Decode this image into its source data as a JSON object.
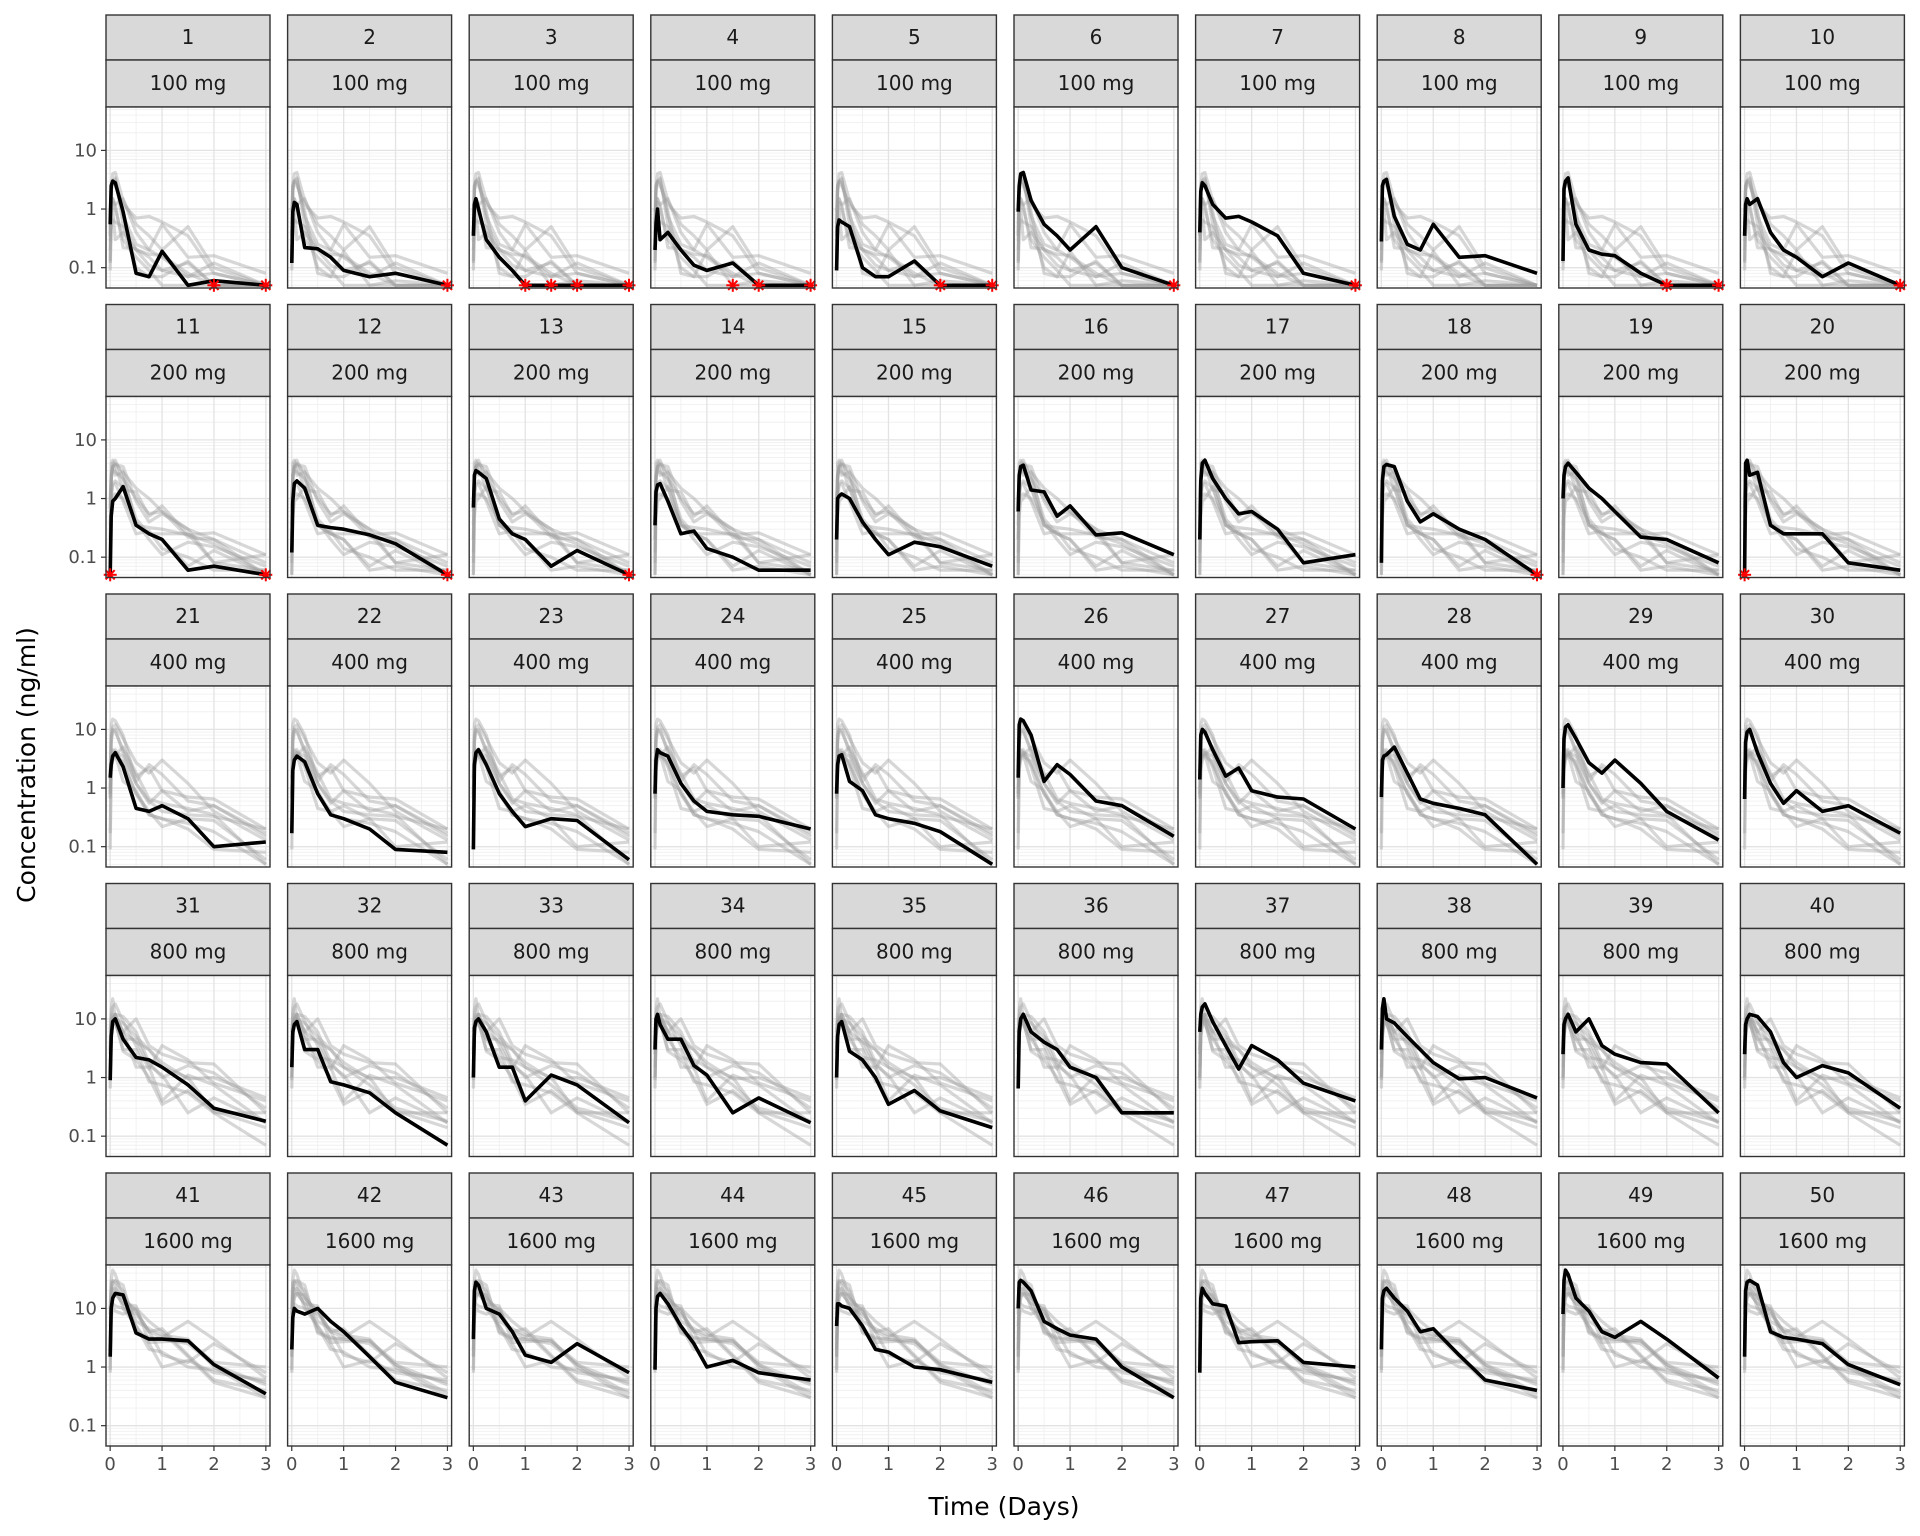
{
  "chart_data": {
    "type": "line",
    "xlabel": "Time (Days)",
    "ylabel": "Concentration (ng/ml)",
    "x_ticks": [
      0,
      1,
      2,
      3
    ],
    "y_ticks": [
      0.1,
      1,
      10
    ],
    "y_tick_labels": [
      "0.1",
      "1",
      "10"
    ],
    "y_scale": "log",
    "xlim": [
      -0.08,
      3.08
    ],
    "ylim": [
      0.045,
      55
    ],
    "grid": true,
    "layout": {
      "rows": 5,
      "cols": 10
    },
    "lloq": 0.05,
    "time_points": [
      0,
      0.02,
      0.05,
      0.1,
      0.25,
      0.5,
      0.75,
      1,
      1.5,
      2,
      3
    ],
    "panels": [
      {
        "id": "1",
        "dose": "100 mg",
        "values": [
          0.55,
          2.5,
          3.0,
          2.8,
          0.9,
          0.08,
          0.07,
          0.19,
          0.05,
          0.06,
          0.05
        ],
        "bql_x": [
          2,
          3
        ]
      },
      {
        "id": "2",
        "dose": "100 mg",
        "values": [
          0.12,
          0.9,
          1.3,
          1.2,
          0.22,
          0.21,
          0.15,
          0.09,
          0.07,
          0.08,
          0.05
        ],
        "bql_x": [
          3
        ]
      },
      {
        "id": "3",
        "dose": "100 mg",
        "values": [
          0.35,
          1.2,
          1.5,
          1.0,
          0.3,
          0.15,
          0.09,
          0.05,
          0.05,
          0.05,
          0.05
        ],
        "bql_x": [
          1,
          1.5,
          2,
          3
        ]
      },
      {
        "id": "4",
        "dose": "100 mg",
        "values": [
          0.2,
          0.55,
          1.0,
          0.3,
          0.4,
          0.2,
          0.11,
          0.09,
          0.12,
          0.05,
          0.05
        ],
        "bql_x": [
          1.5,
          2,
          3
        ]
      },
      {
        "id": "5",
        "dose": "100 mg",
        "values": [
          0.09,
          0.5,
          0.65,
          0.6,
          0.5,
          0.1,
          0.07,
          0.07,
          0.13,
          0.05,
          0.05
        ],
        "bql_x": [
          2,
          3
        ]
      },
      {
        "id": "6",
        "dose": "100 mg",
        "values": [
          0.9,
          2.5,
          4.0,
          4.2,
          1.4,
          0.55,
          0.35,
          0.2,
          0.5,
          0.1,
          0.05
        ],
        "bql_x": [
          3
        ]
      },
      {
        "id": "7",
        "dose": "100 mg",
        "values": [
          0.4,
          2.0,
          2.8,
          2.5,
          1.2,
          0.7,
          0.75,
          0.6,
          0.35,
          0.08,
          0.05
        ],
        "bql_x": [
          3
        ]
      },
      {
        "id": "8",
        "dose": "100 mg",
        "values": [
          0.28,
          2.5,
          3.0,
          3.2,
          0.75,
          0.25,
          0.2,
          0.55,
          0.15,
          0.16,
          0.08
        ],
        "bql_x": []
      },
      {
        "id": "9",
        "dose": "100 mg",
        "values": [
          0.13,
          2.2,
          3.0,
          3.4,
          0.55,
          0.2,
          0.17,
          0.16,
          0.08,
          0.05,
          0.05
        ],
        "bql_x": [
          2,
          3
        ]
      },
      {
        "id": "10",
        "dose": "100 mg",
        "values": [
          0.35,
          1.2,
          1.5,
          1.2,
          1.5,
          0.4,
          0.2,
          0.15,
          0.07,
          0.12,
          0.05
        ],
        "bql_x": [
          3
        ]
      },
      {
        "id": "11",
        "dose": "200 mg",
        "values": [
          0.05,
          0.5,
          0.9,
          1.0,
          1.6,
          0.35,
          0.25,
          0.2,
          0.06,
          0.07,
          0.05
        ],
        "bql_x": [
          0,
          3
        ]
      },
      {
        "id": "12",
        "dose": "200 mg",
        "values": [
          0.12,
          0.9,
          1.8,
          2.0,
          1.5,
          0.35,
          0.32,
          0.3,
          0.24,
          0.17,
          0.05
        ],
        "bql_x": [
          3
        ]
      },
      {
        "id": "13",
        "dose": "200 mg",
        "values": [
          0.7,
          2.5,
          3.0,
          2.8,
          2.2,
          0.45,
          0.25,
          0.2,
          0.07,
          0.13,
          0.05
        ],
        "bql_x": [
          3
        ]
      },
      {
        "id": "14",
        "dose": "200 mg",
        "values": [
          0.35,
          1.3,
          1.7,
          1.8,
          0.9,
          0.25,
          0.28,
          0.14,
          0.1,
          0.06,
          0.06
        ],
        "bql_x": []
      },
      {
        "id": "15",
        "dose": "200 mg",
        "values": [
          0.2,
          1.0,
          1.1,
          1.2,
          1.0,
          0.4,
          0.2,
          0.11,
          0.18,
          0.15,
          0.07
        ],
        "bql_x": []
      },
      {
        "id": "16",
        "dose": "200 mg",
        "values": [
          0.6,
          2.5,
          3.5,
          3.7,
          1.4,
          1.3,
          0.5,
          0.75,
          0.24,
          0.26,
          0.11
        ],
        "bql_x": []
      },
      {
        "id": "17",
        "dose": "200 mg",
        "values": [
          0.2,
          2.0,
          4.0,
          4.5,
          2.2,
          1.0,
          0.55,
          0.6,
          0.3,
          0.08,
          0.11
        ],
        "bql_x": []
      },
      {
        "id": "18",
        "dose": "200 mg",
        "values": [
          0.08,
          2.0,
          3.5,
          3.8,
          3.5,
          0.9,
          0.4,
          0.55,
          0.3,
          0.2,
          0.05
        ],
        "bql_x": [
          3
        ]
      },
      {
        "id": "19",
        "dose": "200 mg",
        "values": [
          1.0,
          2.5,
          3.5,
          4.0,
          2.8,
          1.5,
          1.0,
          0.6,
          0.22,
          0.2,
          0.08
        ],
        "bql_x": []
      },
      {
        "id": "20",
        "dose": "200 mg",
        "values": [
          0.05,
          4.0,
          4.5,
          2.5,
          2.8,
          0.35,
          0.25,
          0.25,
          0.25,
          0.08,
          0.06
        ],
        "bql_x": [
          0
        ]
      },
      {
        "id": "21",
        "dose": "400 mg",
        "values": [
          1.5,
          2.5,
          3.5,
          4.0,
          2.3,
          0.45,
          0.4,
          0.5,
          0.3,
          0.1,
          0.12
        ],
        "bql_x": []
      },
      {
        "id": "22",
        "dose": "400 mg",
        "values": [
          0.17,
          2.0,
          3.0,
          3.5,
          2.8,
          0.8,
          0.35,
          0.3,
          0.2,
          0.09,
          0.08
        ],
        "bql_x": []
      },
      {
        "id": "23",
        "dose": "400 mg",
        "values": [
          0.09,
          2.5,
          4.0,
          4.5,
          2.5,
          0.8,
          0.4,
          0.22,
          0.3,
          0.28,
          0.06
        ],
        "bql_x": []
      },
      {
        "id": "24",
        "dose": "400 mg",
        "values": [
          0.8,
          3.0,
          4.5,
          4.0,
          3.5,
          1.2,
          0.6,
          0.4,
          0.35,
          0.33,
          0.2
        ],
        "bql_x": []
      },
      {
        "id": "25",
        "dose": "400 mg",
        "values": [
          0.8,
          2.5,
          3.5,
          3.7,
          1.3,
          0.9,
          0.35,
          0.3,
          0.25,
          0.18,
          0.05
        ],
        "bql_x": []
      },
      {
        "id": "26",
        "dose": "400 mg",
        "values": [
          1.5,
          12.0,
          15.0,
          14.0,
          8.0,
          1.3,
          2.5,
          1.7,
          0.6,
          0.5,
          0.15
        ],
        "bql_x": []
      },
      {
        "id": "27",
        "dose": "400 mg",
        "values": [
          1.4,
          8.0,
          10.0,
          9.0,
          4.5,
          1.6,
          2.2,
          0.9,
          0.7,
          0.65,
          0.2
        ],
        "bql_x": []
      },
      {
        "id": "28",
        "dose": "400 mg",
        "values": [
          0.7,
          3.0,
          3.5,
          3.7,
          5.0,
          1.8,
          0.65,
          0.55,
          0.45,
          0.35,
          0.05
        ],
        "bql_x": []
      },
      {
        "id": "29",
        "dose": "400 mg",
        "values": [
          1.0,
          7.0,
          11.0,
          12.0,
          7.0,
          2.7,
          1.8,
          3.0,
          1.2,
          0.4,
          0.13
        ],
        "bql_x": []
      },
      {
        "id": "30",
        "dose": "400 mg",
        "values": [
          0.65,
          6.0,
          9.0,
          10.0,
          4.0,
          1.2,
          0.55,
          0.9,
          0.4,
          0.5,
          0.17
        ],
        "bql_x": []
      },
      {
        "id": "31",
        "dose": "800 mg",
        "values": [
          0.9,
          5.0,
          9.0,
          10.0,
          4.5,
          2.2,
          2.0,
          1.5,
          0.75,
          0.3,
          0.18
        ],
        "bql_x": []
      },
      {
        "id": "32",
        "dose": "800 mg",
        "values": [
          1.5,
          6.0,
          8.0,
          9.0,
          3.0,
          3.0,
          0.85,
          0.75,
          0.55,
          0.25,
          0.07
        ],
        "bql_x": []
      },
      {
        "id": "33",
        "dose": "800 mg",
        "values": [
          1.0,
          7.0,
          9.0,
          10.0,
          6.0,
          1.5,
          1.5,
          0.4,
          1.1,
          0.75,
          0.17
        ],
        "bql_x": []
      },
      {
        "id": "34",
        "dose": "800 mg",
        "values": [
          3.0,
          10.0,
          12.0,
          8.0,
          4.5,
          4.5,
          1.6,
          1.1,
          0.25,
          0.45,
          0.17
        ],
        "bql_x": []
      },
      {
        "id": "35",
        "dose": "800 mg",
        "values": [
          1.0,
          5.0,
          8.0,
          9.0,
          2.8,
          2.0,
          1.0,
          0.35,
          0.6,
          0.27,
          0.14
        ],
        "bql_x": []
      },
      {
        "id": "36",
        "dose": "800 mg",
        "values": [
          0.65,
          6.0,
          10.0,
          12.0,
          6.0,
          4.0,
          3.0,
          1.5,
          1.0,
          0.25,
          0.25
        ],
        "bql_x": []
      },
      {
        "id": "37",
        "dose": "800 mg",
        "values": [
          6.0,
          12.0,
          16.0,
          18.0,
          9.0,
          3.5,
          1.4,
          3.5,
          2.0,
          0.8,
          0.4
        ],
        "bql_x": []
      },
      {
        "id": "38",
        "dose": "800 mg",
        "values": [
          3.0,
          15.0,
          22.0,
          10.0,
          8.5,
          5.0,
          3.0,
          1.8,
          0.95,
          1.0,
          0.45
        ],
        "bql_x": []
      },
      {
        "id": "39",
        "dose": "800 mg",
        "values": [
          2.5,
          8.0,
          10.0,
          12.0,
          6.0,
          10.0,
          3.5,
          2.5,
          1.8,
          1.7,
          0.25
        ],
        "bql_x": []
      },
      {
        "id": "40",
        "dose": "800 mg",
        "values": [
          2.5,
          8.0,
          10.0,
          12.0,
          11.0,
          6.0,
          1.8,
          1.0,
          1.6,
          1.2,
          0.3
        ],
        "bql_x": []
      },
      {
        "id": "41",
        "dose": "1600 mg",
        "values": [
          1.5,
          10.0,
          15.0,
          18.0,
          17.0,
          3.8,
          3.0,
          3.0,
          2.8,
          1.1,
          0.35
        ],
        "bql_x": []
      },
      {
        "id": "42",
        "dose": "1600 mg",
        "values": [
          2.0,
          7.0,
          10.0,
          9.0,
          8.0,
          10.0,
          6.0,
          4.0,
          1.5,
          0.55,
          0.3
        ],
        "bql_x": []
      },
      {
        "id": "43",
        "dose": "1600 mg",
        "values": [
          3.0,
          20.0,
          28.0,
          25.0,
          10.0,
          8.0,
          4.0,
          1.6,
          1.2,
          2.5,
          0.8
        ],
        "bql_x": []
      },
      {
        "id": "44",
        "dose": "1600 mg",
        "values": [
          0.9,
          10.0,
          16.0,
          18.0,
          12.0,
          5.0,
          2.5,
          1.0,
          1.3,
          0.8,
          0.6
        ],
        "bql_x": []
      },
      {
        "id": "45",
        "dose": "1600 mg",
        "values": [
          5.0,
          12.0,
          12.0,
          11.0,
          10.0,
          5.0,
          2.0,
          1.8,
          1.0,
          0.9,
          0.55
        ],
        "bql_x": []
      },
      {
        "id": "46",
        "dose": "1600 mg",
        "values": [
          10.0,
          28.0,
          30.0,
          28.0,
          20.0,
          6.0,
          4.5,
          3.5,
          3.0,
          1.0,
          0.3
        ],
        "bql_x": []
      },
      {
        "id": "47",
        "dose": "1600 mg",
        "values": [
          0.8,
          15.0,
          22.0,
          18.0,
          12.0,
          11.0,
          2.6,
          2.7,
          2.8,
          1.2,
          1.0
        ],
        "bql_x": []
      },
      {
        "id": "48",
        "dose": "1600 mg",
        "values": [
          2.0,
          15.0,
          20.0,
          22.0,
          15.0,
          9.0,
          4.0,
          4.5,
          1.6,
          0.6,
          0.4
        ],
        "bql_x": []
      },
      {
        "id": "49",
        "dose": "1600 mg",
        "values": [
          8.0,
          30.0,
          45.0,
          38.0,
          15.0,
          9.0,
          4.0,
          3.2,
          6.0,
          3.0,
          0.65
        ],
        "bql_x": []
      },
      {
        "id": "50",
        "dose": "1600 mg",
        "values": [
          1.5,
          20.0,
          28.0,
          30.0,
          25.0,
          4.0,
          3.2,
          3.0,
          2.5,
          1.1,
          0.5
        ],
        "bql_x": []
      }
    ]
  }
}
